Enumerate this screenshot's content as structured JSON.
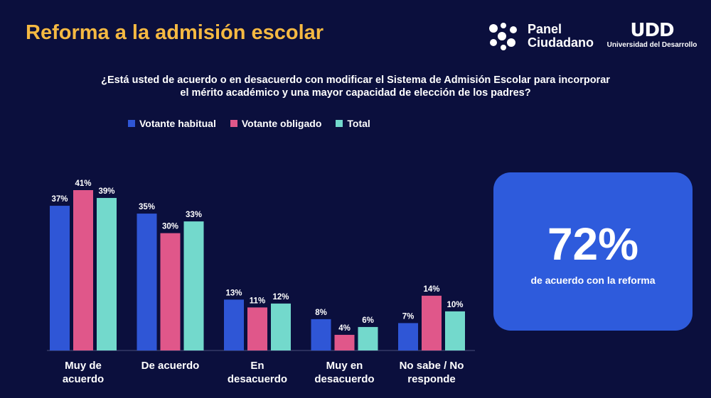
{
  "header": {
    "title": "Reforma a la admisión escolar",
    "logo_panel_line1": "Panel",
    "logo_panel_line2": "Ciudadano",
    "logo_udd_mark": "UDD",
    "logo_udd_name": "Universidad del Desarrollo"
  },
  "question": "¿Está usted de acuerdo o en desacuerdo con modificar el Sistema de Admisión Escolar para incorporar el mérito académico y una mayor capacidad de elección de los padres?",
  "callout": {
    "value": "72%",
    "label": "de acuerdo con la reforma"
  },
  "chart_data": {
    "type": "bar",
    "categories": [
      "Muy de acuerdo",
      "De acuerdo",
      "En desacuerdo",
      "Muy en desacuerdo",
      "No sabe / No responde"
    ],
    "series": [
      {
        "name": "Votante habitual",
        "color": "#2f56d6",
        "values": [
          37,
          35,
          13,
          8,
          7
        ]
      },
      {
        "name": "Votante obligado",
        "color": "#e0578a",
        "values": [
          41,
          30,
          11,
          4,
          14
        ]
      },
      {
        "name": "Total",
        "color": "#73d9cc",
        "values": [
          39,
          33,
          12,
          6,
          10
        ]
      }
    ],
    "value_suffix": "%",
    "ylim": [
      0,
      41
    ],
    "grid": false,
    "legend_position": "top"
  }
}
